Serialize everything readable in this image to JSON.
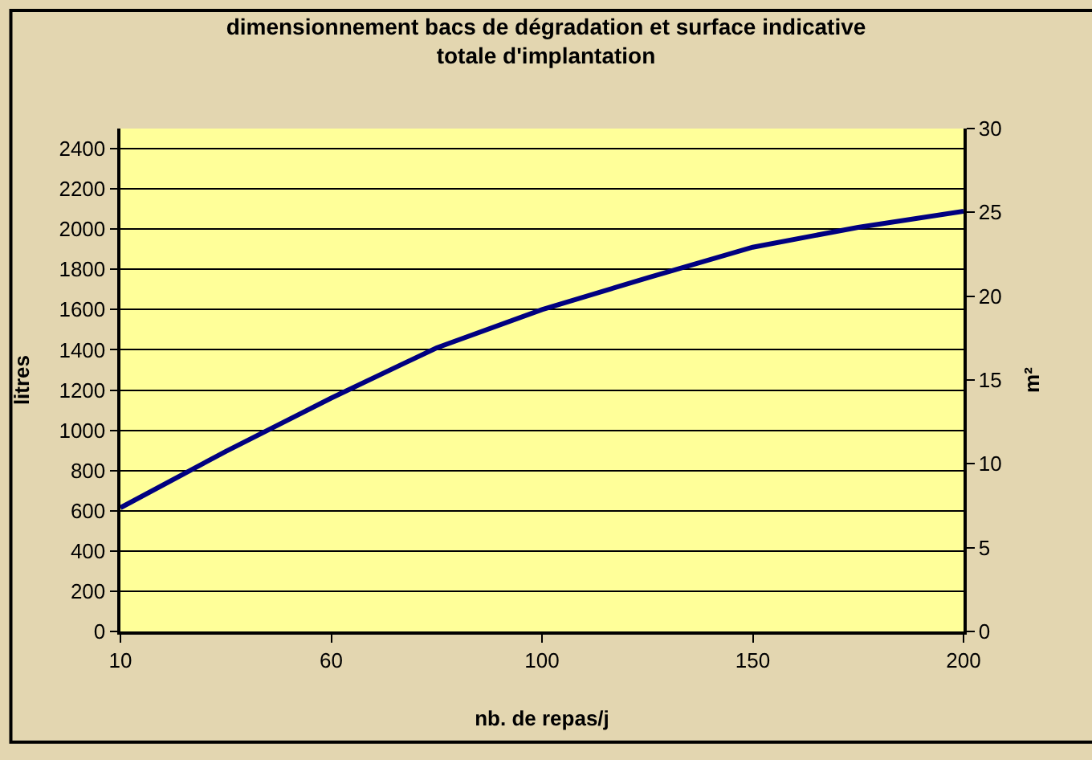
{
  "chart_data": {
    "type": "line",
    "title": "dimensionnement bacs de dégradation et surface indicative totale d'implantation",
    "xlabel": "nb. de repas/j",
    "ylabel": "litres",
    "y2label": "m²",
    "categories": [
      "10",
      null,
      "60",
      null,
      "100",
      null,
      "150",
      null,
      "200"
    ],
    "series": [
      {
        "color": "#000080",
        "values": [
          615,
          895,
          1160,
          1410,
          1600,
          1758,
          1910,
          2009,
          2089
        ]
      }
    ],
    "ylim": [
      0,
      2500
    ],
    "yticks": [
      0,
      200,
      400,
      600,
      800,
      1000,
      1200,
      1400,
      1600,
      1800,
      2000,
      2200,
      2400
    ],
    "y2lim": [
      0,
      30
    ],
    "y2ticks": [
      0,
      5,
      10,
      15,
      20,
      25,
      30
    ],
    "grid": "y",
    "marker": "none",
    "line_style": "solid"
  }
}
